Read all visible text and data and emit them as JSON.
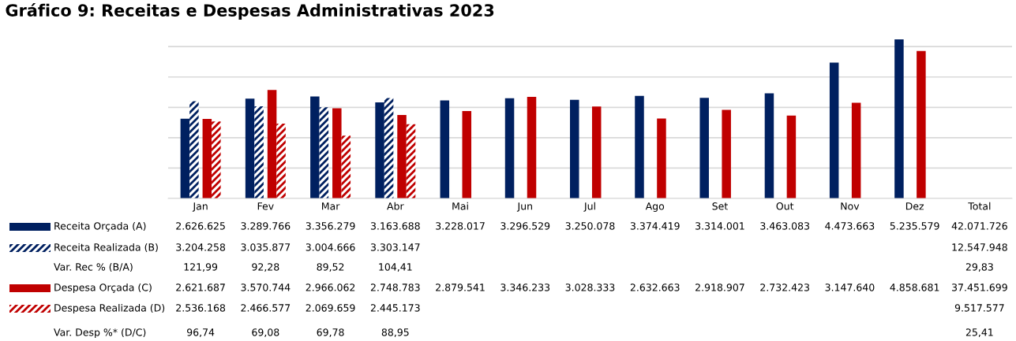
{
  "chart_data": {
    "type": "bar",
    "title": "Gráfico 9: Receitas e Despesas Administrativas 2023",
    "categories": [
      "Jan",
      "Fev",
      "Mar",
      "Abr",
      "Mai",
      "Jun",
      "Jul",
      "Ago",
      "Set",
      "Out",
      "Nov",
      "Dez",
      "Total"
    ],
    "series": [
      {
        "name": "Receita Orçada (A)",
        "color": "#002060",
        "values": [
          2626625,
          3289766,
          3356279,
          3163688,
          3228017,
          3296529,
          3250078,
          3374419,
          3314001,
          3463083,
          4473663,
          5235579,
          null
        ],
        "value_labels": [
          "2.626.625",
          "3.289.766",
          "3.356.279",
          "3.163.688",
          "3.228.017",
          "3.296.529",
          "3.250.078",
          "3.374.419",
          "3.314.001",
          "3.463.083",
          "4.473.663",
          "5.235.579",
          "42.071.726"
        ]
      },
      {
        "name": "Receita Realizada (B)",
        "color": "#002060",
        "line_style": "dashed",
        "values": [
          3204258,
          3035877,
          3004666,
          3303147,
          null,
          null,
          null,
          null,
          null,
          null,
          null,
          null,
          null
        ],
        "value_labels": [
          "3.204.258",
          "3.035.877",
          "3.004.666",
          "3.303.147",
          null,
          null,
          null,
          null,
          null,
          null,
          null,
          null,
          "12.547.948"
        ]
      },
      {
        "name": "Var. Rec % (B/A)",
        "values": [
          null,
          null,
          null,
          null,
          null,
          null,
          null,
          null,
          null,
          null,
          null,
          null,
          null
        ],
        "value_labels": [
          "121,99",
          "92,28",
          "89,52",
          "104,41",
          null,
          null,
          null,
          null,
          null,
          null,
          null,
          null,
          "29,83"
        ]
      },
      {
        "name": "Despesa Orçada (C)",
        "color": "#c00000",
        "values": [
          2621687,
          3570744,
          2966062,
          2748783,
          2879541,
          3346233,
          3028333,
          2632663,
          2918907,
          2732423,
          3147640,
          4858681,
          null
        ],
        "value_labels": [
          "2.621.687",
          "3.570.744",
          "2.966.062",
          "2.748.783",
          "2.879.541",
          "3.346.233",
          "3.028.333",
          "2.632.663",
          "2.918.907",
          "2.732.423",
          "3.147.640",
          "4.858.681",
          "37.451.699"
        ]
      },
      {
        "name": "Despesa Realizada (D)",
        "color": "#c00000",
        "line_style": "dashed",
        "values": [
          2536168,
          2466577,
          2069659,
          2445173,
          null,
          null,
          null,
          null,
          null,
          null,
          null,
          null,
          null
        ],
        "value_labels": [
          "2.536.168",
          "2.466.577",
          "2.069.659",
          "2.445.173",
          null,
          null,
          null,
          null,
          null,
          null,
          null,
          null,
          "9.517.577"
        ]
      },
      {
        "name": "Var. Desp %* (D/C)",
        "values": [
          null,
          null,
          null,
          null,
          null,
          null,
          null,
          null,
          null,
          null,
          null,
          null,
          null
        ],
        "value_labels": [
          "96,74",
          "69,08",
          "69,78",
          "88,95",
          null,
          null,
          null,
          null,
          null,
          null,
          null,
          null,
          "25,41"
        ]
      }
    ],
    "yticks": [
      {
        "value": 0,
        "label": null
      },
      {
        "value": 1000000,
        "label": null
      },
      {
        "value": 2000000,
        "label": null
      },
      {
        "value": 3000000,
        "label": null
      },
      {
        "value": 4000000,
        "label": null
      },
      {
        "value": 5000000,
        "label": null
      }
    ],
    "tick_labels": "x",
    "grid": "y",
    "legend": "bottom"
  }
}
